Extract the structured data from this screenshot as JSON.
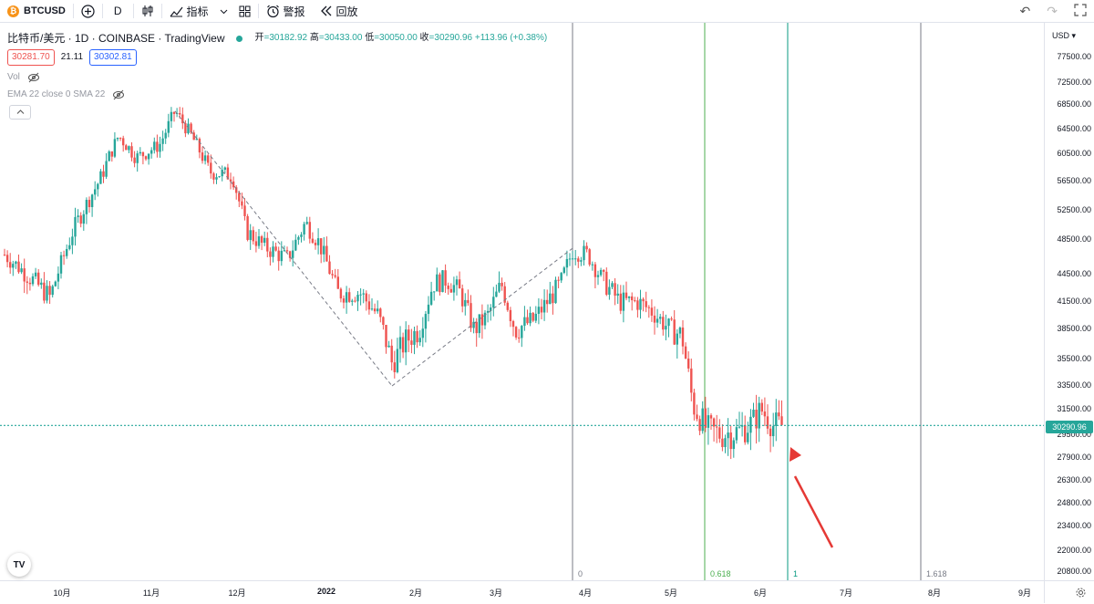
{
  "toolbar": {
    "symbol": "BTCUSD",
    "symbol_logo": "₿",
    "add_icon": "plus-circle-icon",
    "interval": "D",
    "chart_type_icon": "candles-icon",
    "indicators_label": "指标",
    "alert_label": "警报",
    "replay_label": "回放"
  },
  "legend": {
    "title": "比特币/美元 · 1D · COINBASE · TradingView",
    "open_label": "开",
    "open": "=30182.92",
    "high_label": "高",
    "high": "=30433.00",
    "low_label": "低",
    "low": "=30050.00",
    "close_label": "收",
    "close": "=30290.96",
    "change": "+113.96 (+0.38%)",
    "bid": "30281.70",
    "spread": "21.11",
    "ask": "30302.81",
    "vol_label": "Vol",
    "ema_label": "EMA 22 close 0 SMA 22"
  },
  "price_axis": {
    "currency": "USD",
    "labels": [
      "77500.00",
      "72500.00",
      "68500.00",
      "64500.00",
      "60500.00",
      "56500.00",
      "52500.00",
      "48500.00",
      "44500.00",
      "41500.00",
      "38500.00",
      "35500.00",
      "33500.00",
      "31500.00",
      "29500.00",
      "27900.00",
      "26300.00",
      "24800.00",
      "23400.00",
      "22000.00",
      "20800.00"
    ],
    "current": "30290.96"
  },
  "time_axis": {
    "labels": [
      "10月",
      "11月",
      "12月",
      "2022",
      "2月",
      "3月",
      "4月",
      "5月",
      "6月",
      "7月",
      "8月",
      "9月"
    ]
  },
  "fib": {
    "labels": [
      "0",
      "0.618",
      "1",
      "1.618"
    ]
  },
  "colors": {
    "up": "#26a69a",
    "down": "#ef5350",
    "fib_green": "#4caf50",
    "fib_teal": "#089981",
    "fib_gray": "#787b86"
  },
  "chart_data": {
    "type": "candlestick",
    "symbol": "BTCUSD",
    "interval": "1D",
    "approx_closes": [
      {
        "period": "10月",
        "value": 47000
      },
      {
        "period": "11月",
        "value": 61000
      },
      {
        "period": "11月",
        "value": 67500
      },
      {
        "period": "12月",
        "value": 57000
      },
      {
        "period": "12月",
        "value": 47000
      },
      {
        "period": "2022",
        "value": 42000
      },
      {
        "period": "2月",
        "value": 33500
      },
      {
        "period": "2月",
        "value": 43000
      },
      {
        "period": "3月",
        "value": 39000
      },
      {
        "period": "4月",
        "value": 47500
      },
      {
        "period": "5月",
        "value": 38500
      },
      {
        "period": "5月",
        "value": 29500
      },
      {
        "period": "6月",
        "value": 30290.96
      }
    ]
  }
}
